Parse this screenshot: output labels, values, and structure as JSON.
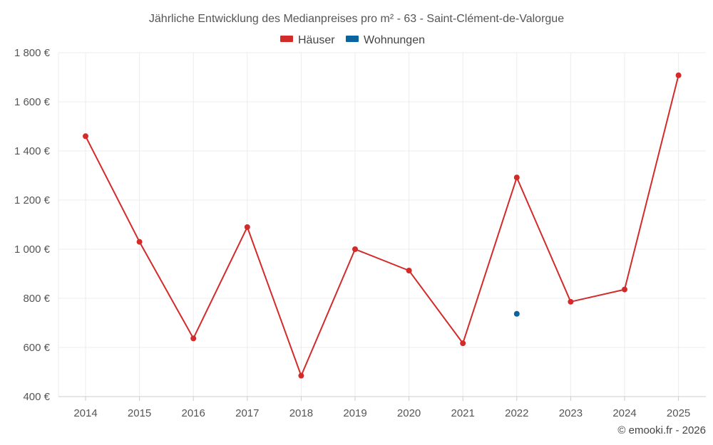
{
  "chart_data": {
    "type": "line",
    "title": "Jährliche Entwicklung des Medianpreises pro m² - 63 - Saint-Clément-de-Valorgue",
    "categories": [
      "2014",
      "2015",
      "2016",
      "2017",
      "2018",
      "2019",
      "2020",
      "2021",
      "2022",
      "2023",
      "2024",
      "2025"
    ],
    "ylim": [
      400,
      1800
    ],
    "yticks": [
      400,
      600,
      800,
      1000,
      1200,
      1400,
      1600,
      1800
    ],
    "ytick_labels": [
      "400 €",
      "600 €",
      "800 €",
      "1 000 €",
      "1 200 €",
      "1 400 €",
      "1 600 €",
      "1 800 €"
    ],
    "grid": true,
    "legend_position": "top-center",
    "series": [
      {
        "name": "Häuser",
        "color": "#d32a2a",
        "values": [
          1460,
          1030,
          637,
          1090,
          485,
          1000,
          913,
          617,
          1292,
          786,
          836,
          1708
        ]
      },
      {
        "name": "Wohnungen",
        "color": "#0a64a0",
        "values": [
          null,
          null,
          null,
          null,
          null,
          null,
          null,
          null,
          737,
          null,
          null,
          null
        ]
      }
    ]
  },
  "credit": "© emooki.fr - 2026"
}
